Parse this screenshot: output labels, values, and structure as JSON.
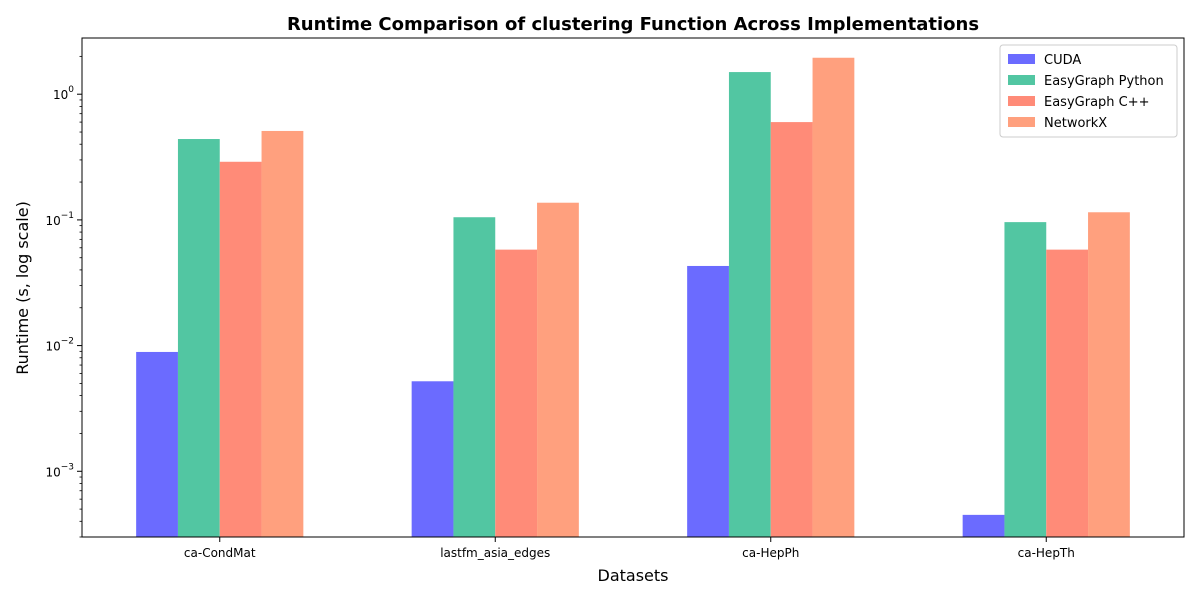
{
  "chart_data": {
    "type": "bar",
    "title": "Runtime Comparison of clustering Function Across Implementations",
    "xlabel": "Datasets",
    "ylabel": "Runtime (s, log scale)",
    "yscale": "log",
    "ylim": [
      0.0003,
      2.8
    ],
    "categories": [
      "ca-CondMat",
      "lastfm_asia_edges",
      "ca-HepPh",
      "ca-HepTh"
    ],
    "yticks": [
      {
        "value": 0.001,
        "base": "10",
        "exp": "−3"
      },
      {
        "value": 0.01,
        "base": "10",
        "exp": "−2"
      },
      {
        "value": 0.1,
        "base": "10",
        "exp": "−1"
      },
      {
        "value": 1,
        "base": "10",
        "exp": "0"
      }
    ],
    "series": [
      {
        "name": "CUDA",
        "color": "#6b6bff",
        "values": [
          0.0089,
          0.0052,
          0.043,
          0.00045
        ]
      },
      {
        "name": "EasyGraph Python",
        "color": "#52c6a2",
        "values": [
          0.44,
          0.105,
          1.5,
          0.096
        ]
      },
      {
        "name": "EasyGraph C++",
        "color": "#ff8b78",
        "values": [
          0.29,
          0.058,
          0.6,
          0.058
        ]
      },
      {
        "name": "NetworkX",
        "color": "#ffa07e",
        "values": [
          0.51,
          0.137,
          1.95,
          0.115
        ]
      }
    ],
    "legend_position": "top-right",
    "grid": false
  }
}
